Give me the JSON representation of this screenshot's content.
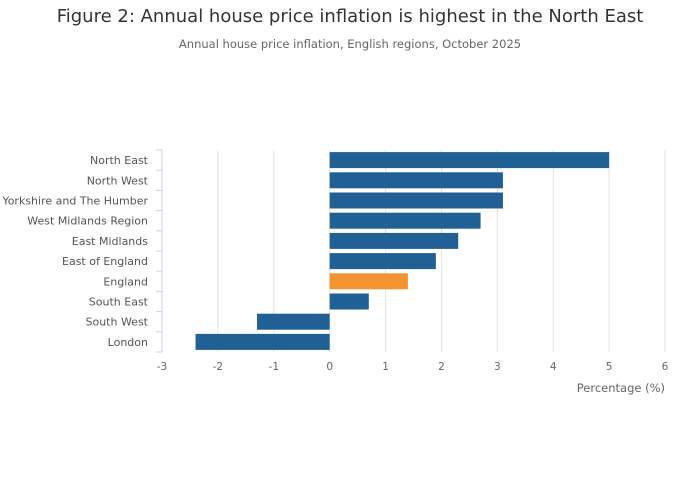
{
  "chart_data": {
    "type": "bar",
    "orientation": "horizontal",
    "title": "Figure 2: Annual house price inflation is highest in the North East",
    "subtitle": "Annual house price inflation, English regions, October 2025",
    "xlabel": "Percentage (%)",
    "ylabel": "",
    "xlim": [
      -3,
      6
    ],
    "xticks": [
      "-3",
      "-2",
      "-1",
      "0",
      "1",
      "2",
      "3",
      "4",
      "5",
      "6"
    ],
    "grid": true,
    "categories": [
      "North East",
      "North West",
      "Yorkshire and The Humber",
      "West Midlands Region",
      "East Midlands",
      "East of England",
      "England",
      "South East",
      "South West",
      "London"
    ],
    "values": [
      5.0,
      3.1,
      3.1,
      2.7,
      2.3,
      1.9,
      1.4,
      0.7,
      -1.3,
      -2.4
    ],
    "colors": {
      "region": "#206095",
      "highlight": "#f39431"
    },
    "highlight_category": "England"
  }
}
